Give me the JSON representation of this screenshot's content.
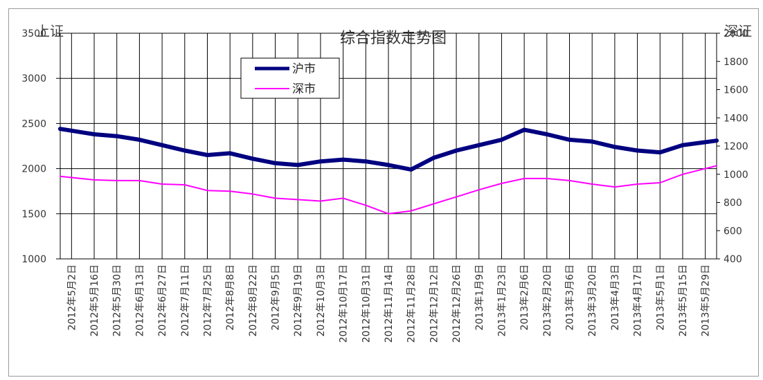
{
  "chart_data": {
    "type": "line",
    "title": "综合指数走势图",
    "ylabel_left": "上证",
    "ylabel_right": "深证",
    "ylim_left": [
      1000,
      3500
    ],
    "yticks_left": [
      1000,
      1500,
      2000,
      2500,
      3000,
      3500
    ],
    "ylim_right": [
      400,
      2000
    ],
    "yticks_right": [
      400,
      600,
      800,
      1000,
      1200,
      1400,
      1600,
      1800,
      2000
    ],
    "grid": true,
    "legend_position": "top-center",
    "x": [
      "2012年5月2日",
      "2012年5月16日",
      "2012年5月30日",
      "2012年6月13日",
      "2012年6月27日",
      "2012年7月11日",
      "2012年7月25日",
      "2012年8月8日",
      "2012年8月22日",
      "2012年9月5日",
      "2012年9月19日",
      "2012年10月3日",
      "2012年10月17日",
      "2012年10月31日",
      "2012年11月14日",
      "2012年11月28日",
      "2012年12月12日",
      "2012年12月26日",
      "2013年1月9日",
      "2013年1月23日",
      "2013年2月6日",
      "2013年2月20日",
      "2013年3月6日",
      "2013年3月20日",
      "2013年4月3日",
      "2013年4月17日",
      "2013年5月1日",
      "2013年5月15日",
      "2013年5月29日"
    ],
    "series": [
      {
        "name": "沪市",
        "axis": "left",
        "color": "#000080",
        "values": [
          2440,
          2380,
          2360,
          2320,
          2260,
          2200,
          2150,
          2170,
          2110,
          2060,
          2040,
          2080,
          2100,
          2080,
          2040,
          1990,
          2120,
          2200,
          2260,
          2320,
          2430,
          2380,
          2320,
          2300,
          2240,
          2200,
          2180,
          2260,
          2310
        ]
      },
      {
        "name": "深市",
        "axis": "right",
        "color": "#ff00ff",
        "values": [
          985,
          960,
          955,
          955,
          930,
          925,
          885,
          880,
          860,
          830,
          820,
          810,
          830,
          780,
          720,
          740,
          790,
          840,
          890,
          935,
          970,
          970,
          955,
          930,
          910,
          930,
          940,
          1000,
          1060
        ]
      }
    ]
  }
}
